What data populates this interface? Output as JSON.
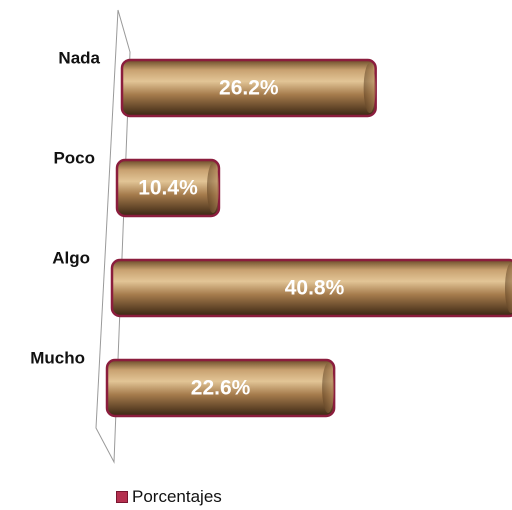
{
  "chart_data": {
    "type": "bar",
    "orientation": "horizontal",
    "categories": [
      "Nada",
      "Poco",
      "Algo",
      "Mucho"
    ],
    "series": [
      {
        "name": "Porcentajes",
        "values": [
          26.2,
          10.4,
          40.8,
          22.6
        ]
      }
    ],
    "value_labels": [
      "26.2%",
      "10.4%",
      "40.8%",
      "22.6%"
    ],
    "legend": {
      "placement": "bottom"
    },
    "grid": false,
    "colors": {
      "bar": "#9c7448",
      "bar_light": "#d8b88a",
      "bar_dark": "#3e2a16",
      "outline": "#8b1d3d",
      "legend_swatch": "#b5304f"
    }
  }
}
